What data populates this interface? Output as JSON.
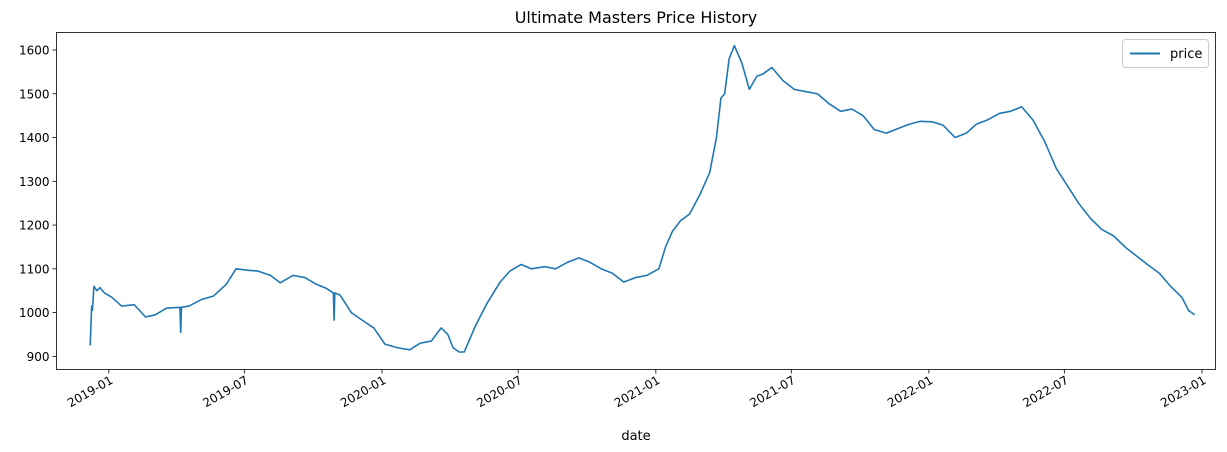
{
  "chart_data": {
    "type": "line",
    "title": "Ultimate Masters Price History",
    "xlabel": "date",
    "ylabel": "",
    "legend_position": "top-right",
    "grid": false,
    "xlim": [
      "2018-10-23",
      "2023-01-19"
    ],
    "ylim": [
      870,
      1640
    ],
    "xticks": [
      {
        "date": "2019-01-01",
        "label": "2019-01"
      },
      {
        "date": "2019-07-01",
        "label": "2019-07"
      },
      {
        "date": "2020-01-01",
        "label": "2020-01"
      },
      {
        "date": "2020-07-01",
        "label": "2020-07"
      },
      {
        "date": "2021-01-01",
        "label": "2021-01"
      },
      {
        "date": "2021-07-01",
        "label": "2021-07"
      },
      {
        "date": "2022-01-01",
        "label": "2022-01"
      },
      {
        "date": "2022-07-01",
        "label": "2022-07"
      },
      {
        "date": "2023-01-01",
        "label": "2023-01"
      }
    ],
    "yticks": [
      900,
      1000,
      1100,
      1200,
      1300,
      1400,
      1500,
      1600
    ],
    "series": [
      {
        "name": "price",
        "color": "#1f77b4",
        "x": [
          "2018-12-07",
          "2018-12-09",
          "2018-12-10",
          "2018-12-12",
          "2018-12-16",
          "2018-12-20",
          "2018-12-26",
          "2019-01-05",
          "2019-01-18",
          "2019-02-04",
          "2019-02-19",
          "2019-03-04",
          "2019-03-19",
          "2019-04-06",
          "2019-04-07",
          "2019-04-08",
          "2019-04-18",
          "2019-05-05",
          "2019-05-21",
          "2019-06-07",
          "2019-06-20",
          "2019-07-05",
          "2019-07-19",
          "2019-08-05",
          "2019-08-18",
          "2019-09-04",
          "2019-09-20",
          "2019-10-05",
          "2019-10-19",
          "2019-10-28",
          "2019-10-29",
          "2019-10-30",
          "2019-11-06",
          "2019-11-21",
          "2019-12-08",
          "2019-12-21",
          "2020-01-05",
          "2020-01-21",
          "2020-02-07",
          "2020-02-21",
          "2020-03-07",
          "2020-03-20",
          "2020-03-29",
          "2020-04-05",
          "2020-04-13",
          "2020-04-20",
          "2020-05-05",
          "2020-05-20",
          "2020-06-07",
          "2020-06-20",
          "2020-07-05",
          "2020-07-19",
          "2020-08-05",
          "2020-08-20",
          "2020-09-05",
          "2020-09-20",
          "2020-10-05",
          "2020-10-20",
          "2020-11-04",
          "2020-11-19",
          "2020-12-05",
          "2020-12-20",
          "2021-01-05",
          "2021-01-14",
          "2021-01-23",
          "2021-02-03",
          "2021-02-15",
          "2021-03-01",
          "2021-03-14",
          "2021-03-23",
          "2021-03-29",
          "2021-04-03",
          "2021-04-09",
          "2021-04-16",
          "2021-04-26",
          "2021-05-06",
          "2021-05-16",
          "2021-05-24",
          "2021-06-05",
          "2021-06-20",
          "2021-07-05",
          "2021-07-20",
          "2021-08-05",
          "2021-08-20",
          "2021-09-05",
          "2021-09-20",
          "2021-10-05",
          "2021-10-20",
          "2021-11-05",
          "2021-11-20",
          "2021-12-05",
          "2021-12-20",
          "2022-01-05",
          "2022-01-20",
          "2022-02-05",
          "2022-02-20",
          "2022-03-05",
          "2022-03-20",
          "2022-04-05",
          "2022-04-20",
          "2022-05-05",
          "2022-05-20",
          "2022-06-05",
          "2022-06-20",
          "2022-07-05",
          "2022-07-20",
          "2022-08-05",
          "2022-08-20",
          "2022-09-05",
          "2022-09-20",
          "2022-10-05",
          "2022-10-20",
          "2022-11-05",
          "2022-11-20",
          "2022-12-05",
          "2022-12-14",
          "2022-12-22"
        ],
        "values": [
          925,
          1015,
          1005,
          1060,
          1050,
          1057,
          1045,
          1035,
          1015,
          1018,
          990,
          995,
          1010,
          1012,
          955,
          1012,
          1015,
          1030,
          1038,
          1065,
          1100,
          1097,
          1095,
          1085,
          1068,
          1085,
          1080,
          1065,
          1055,
          1045,
          983,
          1045,
          1040,
          1000,
          980,
          965,
          928,
          920,
          915,
          930,
          935,
          965,
          950,
          920,
          910,
          910,
          970,
          1020,
          1070,
          1095,
          1110,
          1100,
          1105,
          1100,
          1115,
          1125,
          1115,
          1100,
          1090,
          1070,
          1080,
          1085,
          1100,
          1150,
          1185,
          1210,
          1225,
          1270,
          1320,
          1400,
          1490,
          1500,
          1580,
          1610,
          1570,
          1510,
          1540,
          1545,
          1560,
          1530,
          1510,
          1505,
          1500,
          1478,
          1460,
          1465,
          1450,
          1418,
          1410,
          1420,
          1430,
          1437,
          1436,
          1428,
          1400,
          1410,
          1430,
          1440,
          1455,
          1460,
          1470,
          1440,
          1390,
          1330,
          1290,
          1250,
          1215,
          1190,
          1175,
          1150,
          1130,
          1110,
          1090,
          1060,
          1035,
          1005,
          995
        ]
      }
    ]
  }
}
